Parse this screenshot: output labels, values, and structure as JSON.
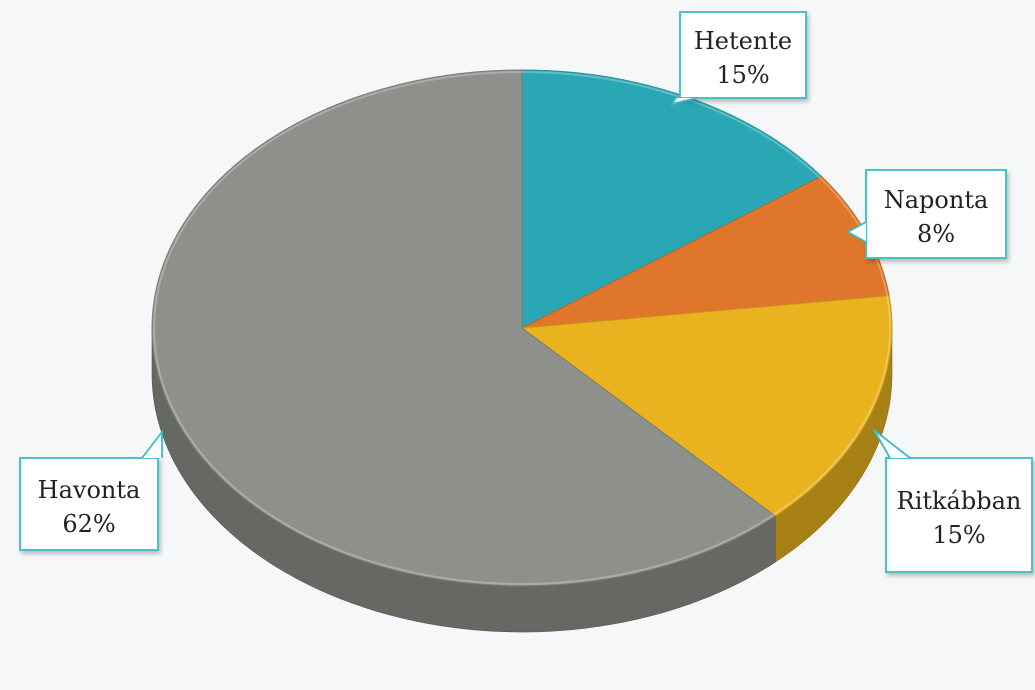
{
  "chart_data": {
    "type": "pie",
    "title": "",
    "slices": [
      {
        "label": "Hetente",
        "value": 15,
        "value_label": "15%",
        "color": "#2aa7b5"
      },
      {
        "label": "Naponta",
        "value": 8,
        "value_label": "8%",
        "color": "#df762b"
      },
      {
        "label": "Ritkábban",
        "value": 15,
        "value_label": "15%",
        "color": "#e9b31f"
      },
      {
        "label": "Havonta",
        "value": 62,
        "value_label": "62%",
        "color": "#8e908b"
      }
    ],
    "style": "3d-exploded",
    "callout_border_color": "#3bbcc6",
    "legend": "none"
  }
}
